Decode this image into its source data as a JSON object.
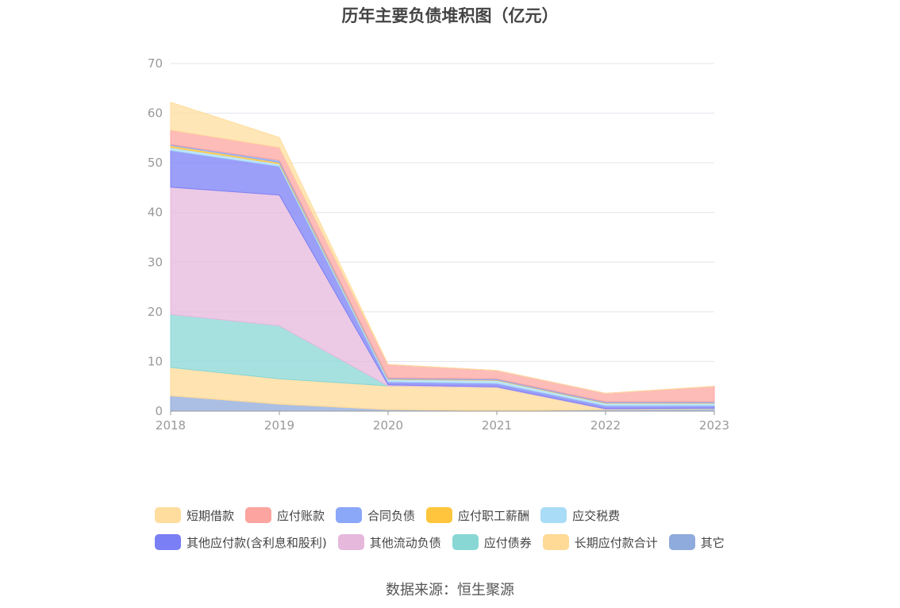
{
  "chart_data": {
    "type": "area",
    "stacked": true,
    "title": "历年主要负债堆积图（亿元）",
    "x": [
      "2018",
      "2019",
      "2020",
      "2021",
      "2022",
      "2023"
    ],
    "ylim": [
      0,
      70
    ],
    "yticks": [
      0,
      10,
      20,
      30,
      40,
      50,
      60,
      70
    ],
    "grid": true,
    "legend_position": "bottom",
    "series": [
      {
        "name": "其它",
        "color": "#8faadc",
        "values": [
          3.1,
          1.4,
          0.3,
          0.1,
          0.3,
          0.5
        ]
      },
      {
        "name": "长期应付款合计",
        "color": "#ffd996",
        "values": [
          5.7,
          5.1,
          4.8,
          4.7,
          0.1,
          0.1
        ]
      },
      {
        "name": "应付债券",
        "color": "#88d7d5",
        "values": [
          10.7,
          10.7,
          0.0,
          0.0,
          0.0,
          0.0
        ]
      },
      {
        "name": "其他流动负债",
        "color": "#e6b8dc",
        "values": [
          25.6,
          26.3,
          0.2,
          0.1,
          0.1,
          0.0
        ]
      },
      {
        "name": "其他应付款(含利息和股利)",
        "color": "#7b7ff5",
        "values": [
          7.4,
          5.8,
          0.6,
          0.7,
          0.6,
          0.5
        ]
      },
      {
        "name": "应交税费",
        "color": "#a8dcf7",
        "values": [
          0.6,
          0.5,
          0.5,
          0.6,
          0.5,
          0.5
        ]
      },
      {
        "name": "应付职工薪酬",
        "color": "#ffc53d",
        "values": [
          0.4,
          0.3,
          0.1,
          0.1,
          0.1,
          0.1
        ]
      },
      {
        "name": "合同负债",
        "color": "#8aa7f8",
        "values": [
          0.2,
          0.4,
          0.2,
          0.2,
          0.2,
          0.2
        ]
      },
      {
        "name": "应付账款",
        "color": "#fca5a0",
        "values": [
          2.9,
          2.6,
          2.7,
          1.7,
          1.7,
          3.1
        ]
      },
      {
        "name": "短期借款",
        "color": "#ffdd9e",
        "values": [
          5.6,
          2.0,
          0.0,
          0.0,
          0.0,
          0.0
        ]
      }
    ],
    "legend_order": [
      "短期借款",
      "应付账款",
      "合同负债",
      "应付职工薪酬",
      "应交税费",
      "其他应付款(含利息和股利)",
      "其他流动负债",
      "应付债券",
      "长期应付款合计",
      "其它"
    ]
  },
  "source": "数据来源：恒生聚源"
}
